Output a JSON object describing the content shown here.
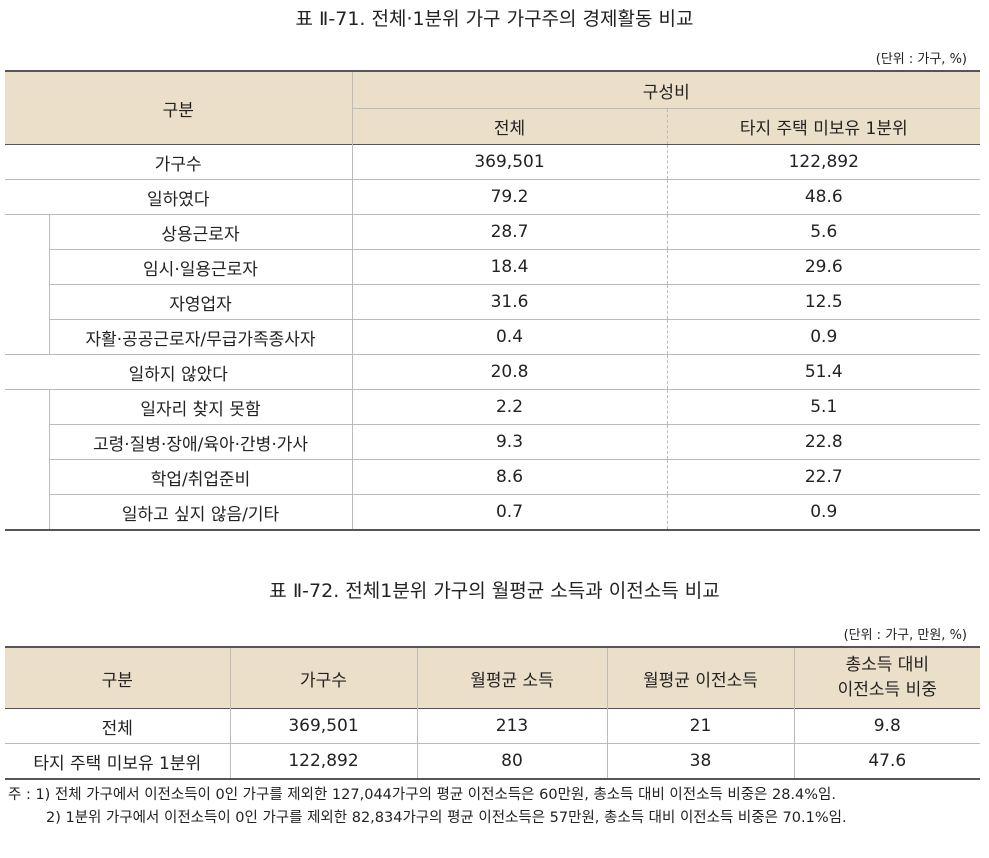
{
  "table1": {
    "title": "표 Ⅱ-71. 전체·1분위 가구 가구주의 경제활동 비교",
    "unit": "(단위 : 가구, %)",
    "header": {
      "category": "구분",
      "group": "구성비",
      "col_all": "전체",
      "col_q1": "타지 주택 미보유 1분위"
    },
    "rows": [
      {
        "label": "가구수",
        "all": "369,501",
        "q1": "122,892"
      },
      {
        "label": "일하였다",
        "all": "79.2",
        "q1": "48.6"
      },
      {
        "label": "상용근로자",
        "all": "28.7",
        "q1": "5.6"
      },
      {
        "label": "임시·일용근로자",
        "all": "18.4",
        "q1": "29.6"
      },
      {
        "label": "자영업자",
        "all": "31.6",
        "q1": "12.5"
      },
      {
        "label": "자활·공공근로자/무급가족종사자",
        "all": "0.4",
        "q1": "0.9"
      },
      {
        "label": "일하지 않았다",
        "all": "20.8",
        "q1": "51.4"
      },
      {
        "label": "일자리 찾지 못함",
        "all": "2.2",
        "q1": "5.1"
      },
      {
        "label": "고령·질병·장애/육아·간병·가사",
        "all": "9.3",
        "q1": "22.8"
      },
      {
        "label": "학업/취업준비",
        "all": "8.6",
        "q1": "22.7"
      },
      {
        "label": "일하고 싶지 않음/기타",
        "all": "0.7",
        "q1": "0.9"
      }
    ]
  },
  "table2": {
    "title": "표 Ⅱ-72. 전체1분위 가구의 월평균 소득과 이전소득 비교",
    "unit": "(단위 : 가구, 만원, %)",
    "header": {
      "category": "구분",
      "households": "가구수",
      "income": "월평균 소득",
      "transfer": "월평균 이전소득",
      "ratio_line1": "총소득 대비",
      "ratio_line2": "이전소득 비중"
    },
    "rows": [
      {
        "label": "전체",
        "households": "369,501",
        "income": "213",
        "transfer": "21",
        "ratio": "9.8"
      },
      {
        "label": "타지 주택 미보유 1분위",
        "households": "122,892",
        "income": "80",
        "transfer": "38",
        "ratio": "47.6"
      }
    ],
    "notes": [
      "주 : 1) 전체 가구에서 이전소득이 0인 가구를 제외한 127,044가구의 평균 이전소득은 60만원, 총소득 대비 이전소득 비중은 28.4%임.",
      "2) 1분위 가구에서 이전소득이 0인 가구를 제외한 82,834가구의 평균 이전소득은 57만원, 총소득 대비 이전소득 비중은 70.1%임."
    ]
  },
  "colors": {
    "header_bg": "#ecdfc9",
    "rule_dark": "#555555",
    "rule_light": "#bbbbbb"
  }
}
